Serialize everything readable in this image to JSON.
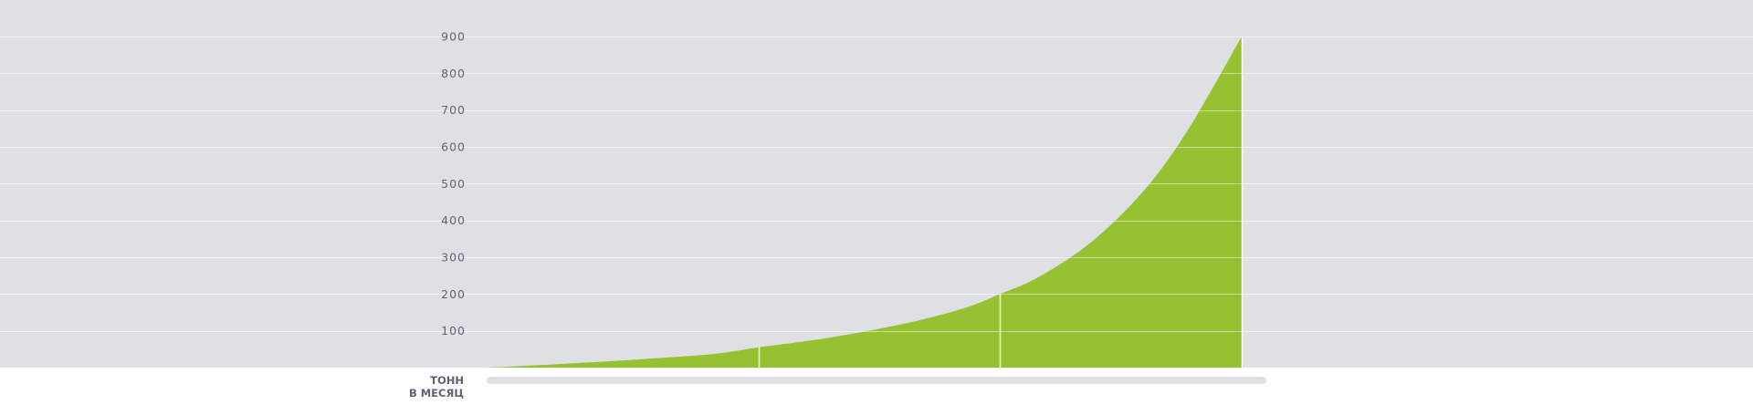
{
  "colors": {
    "background": "#dfe0e4",
    "page": "#ffffff",
    "gridline": "#f2f3f5",
    "area_fill": "#94c231",
    "marker": "#ffffff",
    "tick_text": "#5f6275",
    "scrollbar": "#dfe0e4"
  },
  "chart_data": {
    "type": "area",
    "title": "",
    "xlabel": "",
    "ylabel": "ТОНН В МЕСЯЦ",
    "ylabel_lines": [
      "ТОНН",
      "В МЕСЯЦ"
    ],
    "ylim": [
      0,
      900
    ],
    "yticks": [
      {
        "value": 100,
        "label": "100"
      },
      {
        "value": 200,
        "label": "200"
      },
      {
        "value": 300,
        "label": "300"
      },
      {
        "value": 400,
        "label": "400"
      },
      {
        "value": 500,
        "label": "500"
      },
      {
        "value": 600,
        "label": "600"
      },
      {
        "value": 700,
        "label": "700"
      },
      {
        "value": 800,
        "label": "800"
      },
      {
        "value": 900,
        "label": "900"
      }
    ],
    "grid": true,
    "legend": "none",
    "series": [
      {
        "points": [
          {
            "x": 0.0,
            "y": 0
          },
          {
            "x": 0.1,
            "y": 10
          },
          {
            "x": 0.2,
            "y": 22
          },
          {
            "x": 0.3,
            "y": 37
          },
          {
            "x": 0.36,
            "y": 55
          },
          {
            "x": 0.45,
            "y": 80
          },
          {
            "x": 0.55,
            "y": 118
          },
          {
            "x": 0.63,
            "y": 160
          },
          {
            "x": 0.68,
            "y": 200
          },
          {
            "x": 0.73,
            "y": 245
          },
          {
            "x": 0.8,
            "y": 340
          },
          {
            "x": 0.87,
            "y": 480
          },
          {
            "x": 0.93,
            "y": 650
          },
          {
            "x": 1.0,
            "y": 900
          }
        ]
      }
    ],
    "markers": [
      {
        "x": 0.36,
        "y": 55
      },
      {
        "x": 0.68,
        "y": 200
      },
      {
        "x": 1.0,
        "y": 900
      }
    ]
  }
}
